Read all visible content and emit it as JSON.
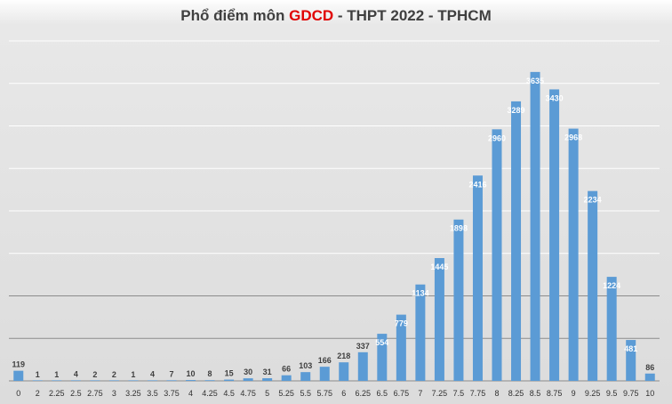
{
  "title": {
    "prefix": "Phổ điểm môn ",
    "highlight": "GDCD",
    "suffix": " - THPT 2022 - TPHCM"
  },
  "colors": {
    "bar": "#5b9bd5",
    "highlight": "#e00000",
    "gridline": "#ffffff",
    "gridline_strong": "#8c8c8c"
  },
  "chart_data": {
    "type": "bar",
    "title": "Phổ điểm môn GDCD - THPT 2022 - TPHCM",
    "xlabel": "",
    "ylabel": "",
    "categories": [
      "0",
      "2",
      "2.25",
      "2.5",
      "2.75",
      "3",
      "3.25",
      "3.5",
      "3.75",
      "4",
      "4.25",
      "4.5",
      "4.75",
      "5",
      "5.25",
      "5.5",
      "5.75",
      "6",
      "6.25",
      "6.5",
      "6.75",
      "7",
      "7.25",
      "7.5",
      "7.75",
      "8",
      "8.25",
      "8.5",
      "8.75",
      "9",
      "9.25",
      "9.5",
      "9.75",
      "10"
    ],
    "values": [
      119,
      1,
      1,
      4,
      2,
      2,
      1,
      4,
      7,
      10,
      8,
      15,
      30,
      31,
      66,
      103,
      166,
      218,
      337,
      554,
      779,
      1134,
      1445,
      1898,
      2416,
      2960,
      3289,
      3635,
      3430,
      2968,
      2234,
      1224,
      481,
      86
    ],
    "ylim": [
      0,
      4000
    ],
    "y_axis_labels_shown": false,
    "grid": true,
    "legend": "none"
  }
}
